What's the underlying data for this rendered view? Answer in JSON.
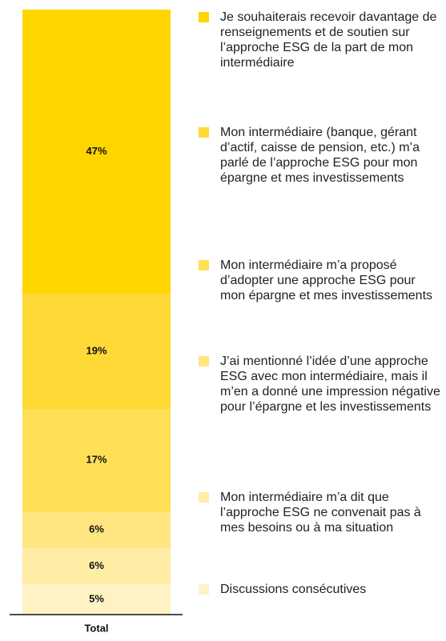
{
  "chart_data": {
    "type": "stacked_bar",
    "categories": [
      "Total"
    ],
    "ylim": [
      0,
      100
    ],
    "series": [
      {
        "name": "Je souhaiterais recevoir davantage de renseignements et de soutien sur l’approche ESG de la part de mon intermédiaire",
        "color": "#FFD500",
        "values": [
          47
        ],
        "value_labels": [
          "47%"
        ]
      },
      {
        "name": "Mon intermédiaire (banque, gérant d’actif, caisse de pension, etc.) m’a parlé de l’approche ESG pour mon épargne et mes investissements",
        "color": "#FFD935",
        "values": [
          19
        ],
        "value_labels": [
          "19%"
        ]
      },
      {
        "name": "Mon intermédiaire m’a proposé d’adopter une approche ESG pour mon épargne et mes investissements",
        "color": "#FFE055",
        "values": [
          17
        ],
        "value_labels": [
          "17%"
        ]
      },
      {
        "name": "J’ai mentionné l’idée d’une approche ESG avec mon intermédiaire, mais il m’en a donné une impression négative pour l’épargne et les investissements",
        "color": "#FFE680",
        "values": [
          6
        ],
        "value_labels": [
          "6%"
        ]
      },
      {
        "name": "Mon intermédiaire m’a dit que l’approche ESG ne convenait pas à mes besoins ou à ma situation",
        "color": "#FFEDA6",
        "values": [
          6
        ],
        "value_labels": [
          "6%"
        ]
      },
      {
        "name": "Discussions consécutives",
        "color": "#FFF3C6",
        "values": [
          5
        ],
        "value_labels": [
          "5%"
        ]
      }
    ]
  }
}
